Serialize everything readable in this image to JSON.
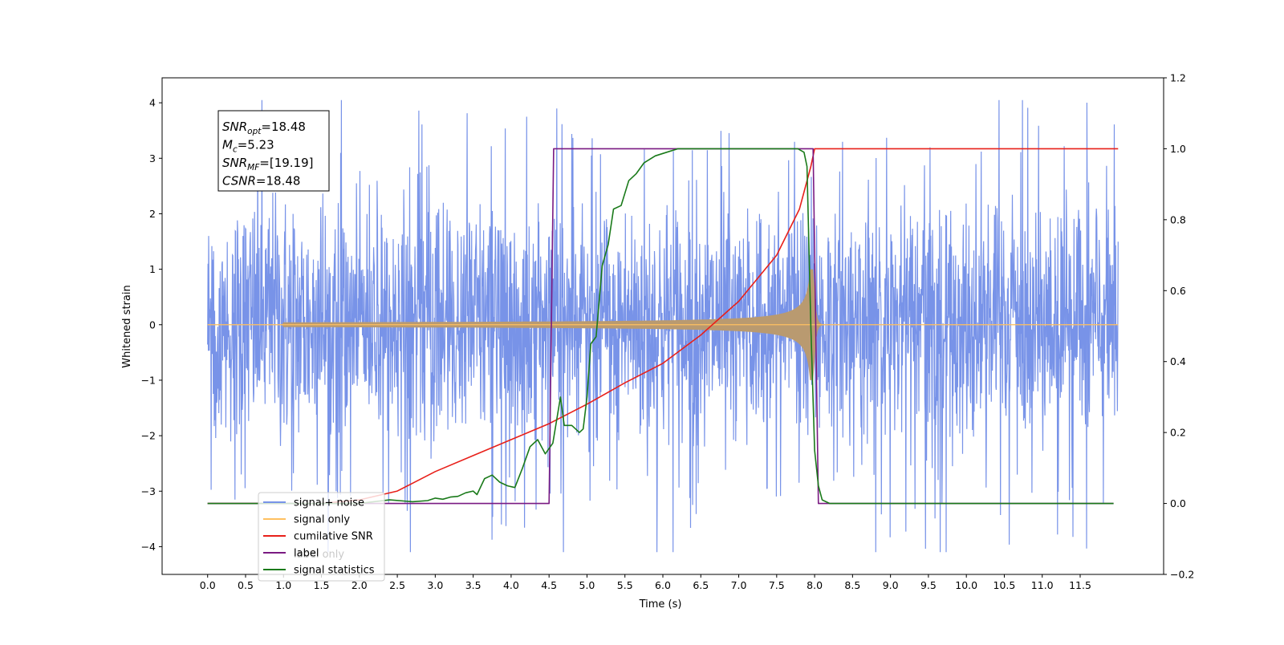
{
  "chart_data": {
    "type": "line",
    "xlabel": "Time (s)",
    "ylabel": "Whitened strain",
    "xlim": [
      -0.6,
      12.6
    ],
    "ylim": [
      -4.5,
      4.45
    ],
    "y2lim": [
      -0.2,
      1.2
    ],
    "x_ticks": [
      0.0,
      0.5,
      1.0,
      1.5,
      2.0,
      2.5,
      3.0,
      3.5,
      4.0,
      4.5,
      5.0,
      5.5,
      6.0,
      6.5,
      7.0,
      7.5,
      8.0,
      8.5,
      9.0,
      9.5,
      10.0,
      10.5,
      11.0,
      11.5
    ],
    "x_tick_labels": [
      "0.0",
      "0.5",
      "1.0",
      "1.5",
      "2.0",
      "2.5",
      "3.0",
      "3.5",
      "4.0",
      "4.5",
      "5.0",
      "5.5",
      "6.0",
      "6.5",
      "7.0",
      "7.5",
      "8.0",
      "8.5",
      "9.0",
      "9.5",
      "10.0",
      "10.5",
      "11.0",
      "11.5"
    ],
    "y_ticks": [
      -4,
      -3,
      -2,
      -1,
      0,
      1,
      2,
      3,
      4
    ],
    "y_tick_labels": [
      "−4",
      "−3",
      "−2",
      "−1",
      "0",
      "1",
      "2",
      "3",
      "4"
    ],
    "y2_ticks": [
      -0.2,
      0.0,
      0.2,
      0.4,
      0.6,
      0.8,
      1.0,
      1.2
    ],
    "y2_tick_labels": [
      "−0.2",
      "0.0",
      "0.2",
      "0.4",
      "0.6",
      "0.8",
      "1.0",
      "1.2"
    ],
    "grid": false,
    "legend_position": "lower-left",
    "annotation_box": {
      "lines": [
        {
          "var": "SNR",
          "sub": "opt",
          "value": "=18.48"
        },
        {
          "var": "M",
          "sub": "c",
          "value": "=5.23"
        },
        {
          "var": "SNR",
          "sub": "MF",
          "value": "=[19.19]"
        },
        {
          "var": "CSNR",
          "sub": "",
          "value": "=18.48"
        }
      ]
    },
    "series": [
      {
        "name": "signal+ noise",
        "color": "#7893e8",
        "axis": "left",
        "kind": "noise",
        "x_range": [
          0.0,
          12.0
        ],
        "y_extent": [
          -4.1,
          4.05
        ]
      },
      {
        "name": "signal only",
        "color": "#ffc060",
        "axis": "left",
        "kind": "chirp",
        "x_range": [
          0.0,
          12.0
        ],
        "merger_time": 7.98,
        "peak_amplitude": 1.6,
        "fill_color": "#b99a70"
      },
      {
        "name": "cumilative SNR",
        "color": "#e8201a",
        "axis": "right",
        "x": [
          0.0,
          1.0,
          1.5,
          2.0,
          2.5,
          3.0,
          3.5,
          4.0,
          4.5,
          5.0,
          5.5,
          6.0,
          6.5,
          7.0,
          7.5,
          7.8,
          7.95,
          8.0,
          8.1,
          9.0,
          10.0,
          11.0,
          12.0
        ],
        "y": [
          0.0,
          0.0,
          0.0,
          0.01,
          0.035,
          0.09,
          0.135,
          0.18,
          0.225,
          0.28,
          0.34,
          0.395,
          0.475,
          0.57,
          0.7,
          0.83,
          0.95,
          1.0,
          1.0,
          1.0,
          1.0,
          1.0,
          1.0
        ]
      },
      {
        "name": "label",
        "color": "#7a1a82",
        "axis": "right",
        "x": [
          0.0,
          4.5,
          4.56,
          7.98,
          8.05,
          11.94
        ],
        "y": [
          0.0,
          0.0,
          1.0,
          1.0,
          0.0,
          0.0
        ]
      },
      {
        "name": "signal statistics",
        "color": "#1a7a1a",
        "axis": "right",
        "x": [
          0.0,
          2.0,
          2.4,
          2.7,
          2.9,
          3.0,
          3.1,
          3.2,
          3.3,
          3.4,
          3.5,
          3.55,
          3.65,
          3.75,
          3.85,
          3.95,
          4.05,
          4.15,
          4.25,
          4.35,
          4.45,
          4.55,
          4.65,
          4.7,
          4.8,
          4.9,
          4.95,
          5.0,
          5.05,
          5.12,
          5.2,
          5.28,
          5.35,
          5.45,
          5.55,
          5.65,
          5.75,
          5.9,
          6.05,
          6.2,
          6.4,
          6.6,
          7.0,
          7.5,
          7.78,
          7.86,
          7.9,
          7.95,
          8.0,
          8.05,
          8.1,
          8.2,
          8.5,
          11.94
        ],
        "y": [
          0.0,
          0.0,
          0.01,
          0.005,
          0.008,
          0.015,
          0.012,
          0.018,
          0.02,
          0.03,
          0.035,
          0.025,
          0.07,
          0.08,
          0.06,
          0.05,
          0.045,
          0.1,
          0.16,
          0.18,
          0.14,
          0.17,
          0.3,
          0.22,
          0.22,
          0.2,
          0.21,
          0.3,
          0.45,
          0.47,
          0.67,
          0.73,
          0.83,
          0.84,
          0.91,
          0.93,
          0.96,
          0.98,
          0.99,
          1.0,
          1.0,
          1.0,
          1.0,
          1.0,
          1.0,
          0.99,
          0.95,
          0.5,
          0.15,
          0.05,
          0.01,
          0.0,
          0.0,
          0.0
        ]
      }
    ],
    "legend_entries": [
      {
        "name": "signal+ noise",
        "color": "#7893e8"
      },
      {
        "name": "signal only",
        "color": "#ffc060"
      },
      {
        "name": "cumilative SNR",
        "color": "#e8201a"
      },
      {
        "name": "label",
        "color": "#7a1a82"
      },
      {
        "name": "signal statistics",
        "color": "#1a7a1a"
      }
    ],
    "hidden_legend_text": "label only"
  }
}
